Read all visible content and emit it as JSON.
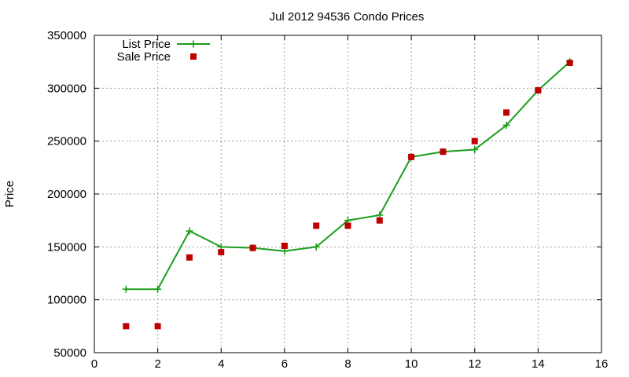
{
  "chart_data": {
    "type": "line",
    "title": "Jul 2012 94536 Condo Prices",
    "xlabel": "",
    "ylabel": "Price",
    "xlim": [
      0,
      16
    ],
    "ylim": [
      50000,
      350000
    ],
    "xticks": [
      0,
      2,
      4,
      6,
      8,
      10,
      12,
      14,
      16
    ],
    "yticks": [
      50000,
      100000,
      150000,
      200000,
      250000,
      300000,
      350000
    ],
    "grid": true,
    "legend_position": "top-left",
    "series": [
      {
        "name": "List Price",
        "style": "line+points",
        "marker": "plus",
        "color": "#1a9e1a",
        "x": [
          1,
          2,
          3,
          4,
          5,
          6,
          7,
          8,
          9,
          10,
          11,
          12,
          13,
          14,
          15
        ],
        "y": [
          110000,
          110000,
          165000,
          150000,
          149000,
          146000,
          150000,
          175000,
          180000,
          235000,
          240000,
          242000,
          265000,
          298000,
          325000
        ]
      },
      {
        "name": "Sale Price",
        "style": "points",
        "marker": "square",
        "color": "#c00000",
        "x": [
          1,
          2,
          3,
          4,
          5,
          6,
          7,
          8,
          9,
          10,
          11,
          12,
          13,
          14,
          15
        ],
        "y": [
          75000,
          75000,
          140000,
          145000,
          149000,
          151000,
          170000,
          170000,
          175000,
          235000,
          240000,
          250000,
          277000,
          298000,
          324000
        ]
      }
    ]
  }
}
